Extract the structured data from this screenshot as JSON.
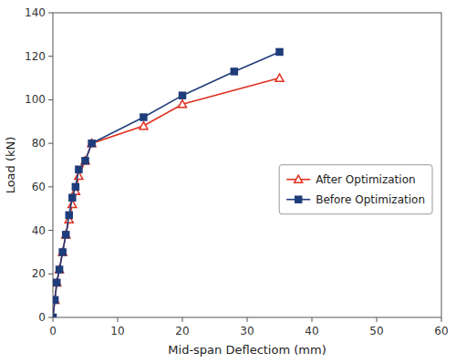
{
  "chart_data": {
    "type": "line",
    "xlabel": "Mid-span Deflectiom (mm)",
    "ylabel": "Load (kN)",
    "series": [
      {
        "name": "After Optimization",
        "color": "#e03020",
        "marker": "open-triangle",
        "x": [
          0,
          0.3,
          0.6,
          1.0,
          1.5,
          2.0,
          2.5,
          3.0,
          3.5,
          4.0,
          5.0,
          6.0,
          14.0,
          20.0,
          35.0
        ],
        "values": [
          0,
          8,
          16,
          22,
          30,
          38,
          45,
          52,
          58,
          65,
          72,
          80,
          88,
          98,
          110
        ]
      },
      {
        "name": "Before Optimization",
        "color": "#1f3d7a",
        "marker": "square",
        "x": [
          0,
          0.3,
          0.6,
          1.0,
          1.5,
          2.0,
          2.5,
          3.0,
          3.5,
          4.0,
          5.0,
          6.0,
          14.0,
          20.0,
          28.0,
          35.0
        ],
        "values": [
          0,
          8,
          16,
          22,
          30,
          38,
          47,
          55,
          60,
          68,
          72,
          80,
          92,
          102,
          113,
          122
        ]
      }
    ],
    "xlim": [
      0,
      60
    ],
    "ylim": [
      0,
      140
    ],
    "xticks": [
      0,
      10,
      20,
      30,
      40,
      50,
      60
    ],
    "yticks": [
      0,
      20,
      40,
      60,
      80,
      100,
      120,
      140
    ],
    "grid": false,
    "legend": "right"
  }
}
